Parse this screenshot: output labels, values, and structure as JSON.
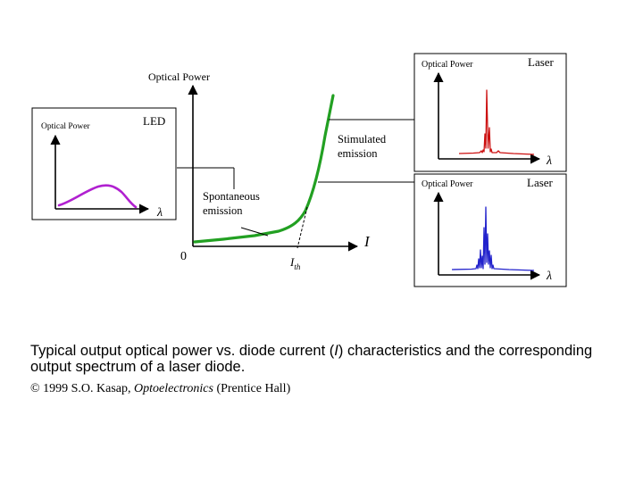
{
  "main_plot": {
    "y_axis_label": "Optical Power",
    "x_axis_symbol": "I",
    "origin_label": "0",
    "threshold_symbol": "I",
    "threshold_subscript": "th",
    "spontaneous_label_line1": "Spontaneous",
    "spontaneous_label_line2": "emission",
    "stimulated_label_line1": "Stimulated",
    "stimulated_label_line2": "emission",
    "curve_color": "#22a022"
  },
  "insets": {
    "led": {
      "y_label": "Optical Power",
      "title": "LED",
      "x_symbol": "λ",
      "color": "#b020d0"
    },
    "laser_top": {
      "y_label": "Optical Power",
      "title": "Laser",
      "x_symbol": "λ",
      "color": "#cc1111"
    },
    "laser_bottom": {
      "y_label": "Optical Power",
      "title": "Laser",
      "x_symbol": "λ",
      "color": "#2222cc"
    }
  },
  "caption": {
    "text_part1": "Typical output optical power vs. diode current (",
    "text_symbol": "I",
    "text_part2": ") characteristics and the corresponding output spectrum of a laser diode.",
    "copyright_prefix": "© 1999 S.O. Kasap, ",
    "copyright_book": "Optoelectronics",
    "copyright_suffix": " (Prentice Hall)"
  }
}
